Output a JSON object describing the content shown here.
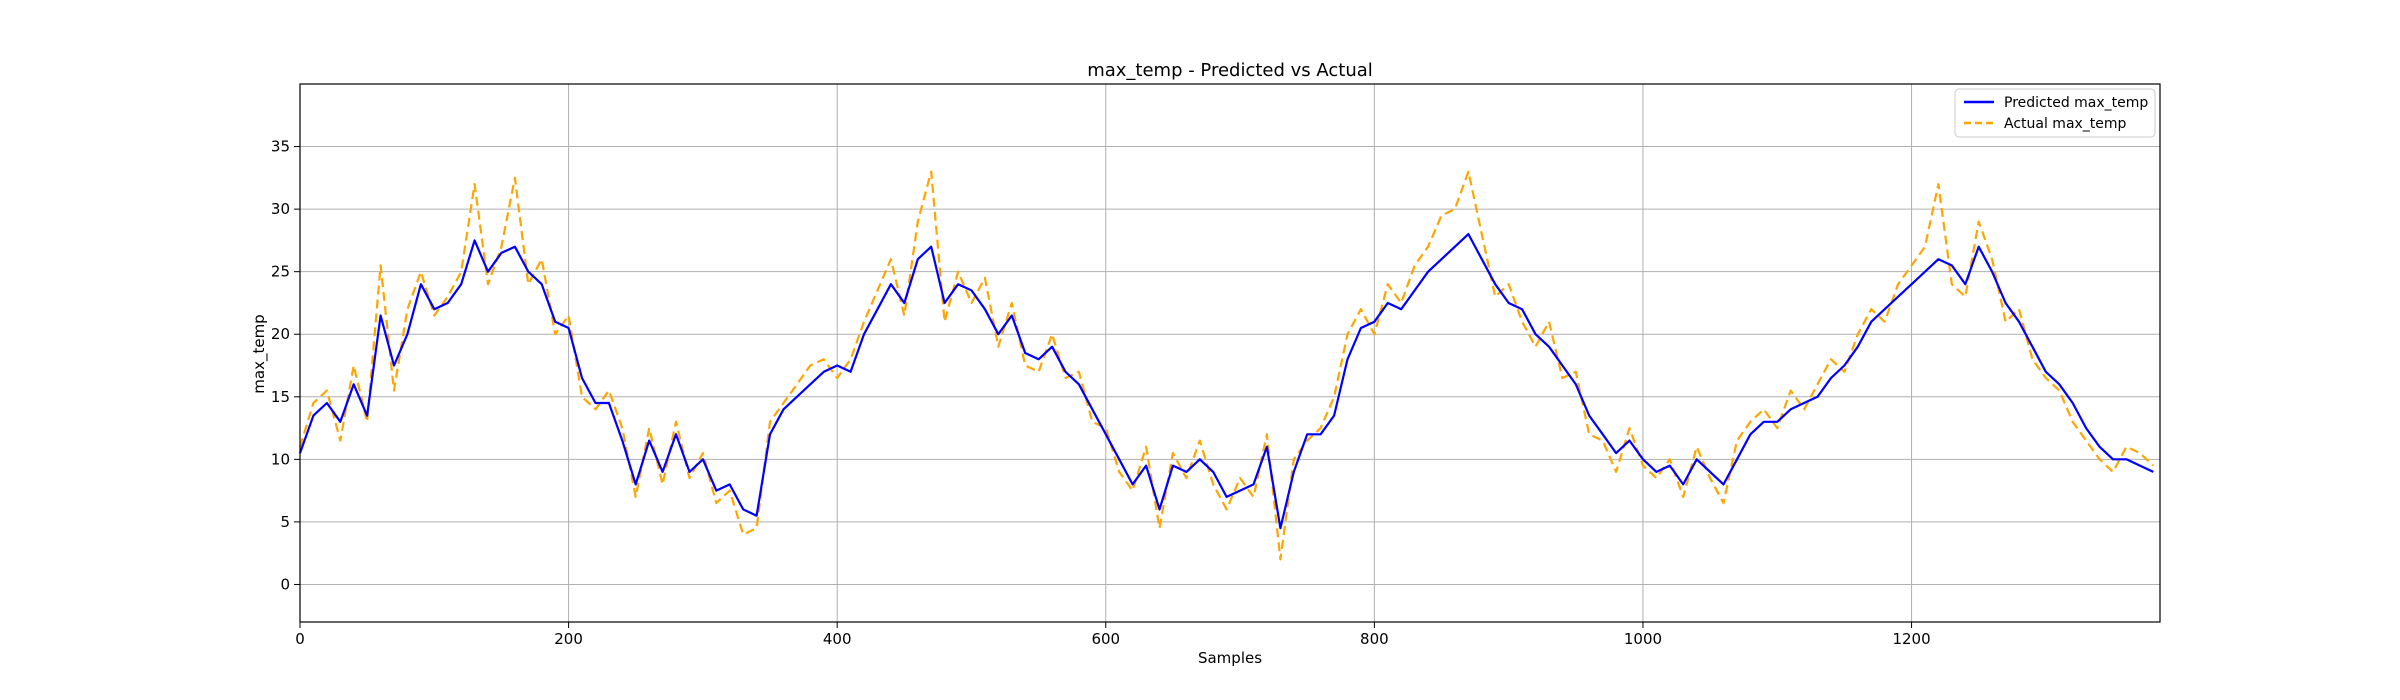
{
  "chart_data": {
    "type": "line",
    "title": "max_temp - Predicted vs Actual",
    "xlabel": "Samples",
    "ylabel": "max_temp",
    "xlim": [
      0,
      1385
    ],
    "ylim": [
      -3,
      40
    ],
    "xticks": [
      0,
      200,
      400,
      600,
      800,
      1000,
      1200
    ],
    "yticks": [
      0,
      5,
      10,
      15,
      20,
      25,
      30,
      35
    ],
    "grid": true,
    "legend_position": "top-right",
    "series": [
      {
        "name": "Predicted max_temp",
        "color": "#0000ff",
        "style": "solid",
        "x": [
          0,
          10,
          20,
          30,
          40,
          50,
          60,
          70,
          80,
          90,
          100,
          110,
          120,
          130,
          140,
          150,
          160,
          170,
          180,
          190,
          200,
          210,
          220,
          230,
          240,
          250,
          260,
          270,
          280,
          290,
          300,
          310,
          320,
          330,
          340,
          350,
          360,
          370,
          380,
          390,
          400,
          410,
          420,
          430,
          440,
          450,
          460,
          470,
          480,
          490,
          500,
          510,
          520,
          530,
          540,
          550,
          560,
          570,
          580,
          590,
          600,
          610,
          620,
          630,
          640,
          650,
          660,
          670,
          680,
          690,
          700,
          710,
          720,
          730,
          740,
          750,
          760,
          770,
          780,
          790,
          800,
          810,
          820,
          830,
          840,
          850,
          860,
          870,
          880,
          890,
          900,
          910,
          920,
          930,
          940,
          950,
          960,
          970,
          980,
          990,
          1000,
          1010,
          1020,
          1030,
          1040,
          1050,
          1060,
          1070,
          1080,
          1090,
          1100,
          1110,
          1120,
          1130,
          1140,
          1150,
          1160,
          1170,
          1180,
          1190,
          1200,
          1210,
          1220,
          1230,
          1240,
          1250,
          1260,
          1270,
          1280,
          1290,
          1300,
          1310,
          1320,
          1330,
          1340,
          1350,
          1360,
          1370,
          1380
        ],
        "values": [
          10.5,
          13.5,
          14.5,
          13.0,
          16.0,
          13.5,
          21.5,
          17.5,
          20.0,
          24.0,
          22.0,
          22.5,
          24.0,
          27.5,
          25.0,
          26.5,
          27.0,
          25.0,
          24.0,
          21.0,
          20.5,
          16.5,
          14.5,
          14.5,
          11.5,
          8.0,
          11.5,
          9.0,
          12.0,
          9.0,
          10.0,
          7.5,
          8.0,
          6.0,
          5.5,
          12.0,
          14.0,
          15.0,
          16.0,
          17.0,
          17.5,
          17.0,
          20.0,
          22.0,
          24.0,
          22.5,
          26.0,
          27.0,
          22.5,
          24.0,
          23.5,
          22.0,
          20.0,
          21.5,
          18.5,
          18.0,
          19.0,
          17.0,
          16.0,
          14.0,
          12.0,
          10.0,
          8.0,
          9.5,
          6.0,
          9.5,
          9.0,
          10.0,
          9.0,
          7.0,
          7.5,
          8.0,
          11.0,
          4.5,
          9.0,
          12.0,
          12.0,
          13.5,
          18.0,
          20.5,
          21.0,
          22.5,
          22.0,
          23.5,
          25.0,
          26.0,
          27.0,
          28.0,
          26.0,
          24.0,
          22.5,
          22.0,
          20.0,
          19.0,
          17.5,
          16.0,
          13.5,
          12.0,
          10.5,
          11.5,
          10.0,
          9.0,
          9.5,
          8.0,
          10.0,
          9.0,
          8.0,
          10.0,
          12.0,
          13.0,
          13.0,
          14.0,
          14.5,
          15.0,
          16.5,
          17.5,
          19.0,
          21.0,
          22.0,
          23.0,
          24.0,
          25.0,
          26.0,
          25.5,
          24.0,
          27.0,
          25.0,
          22.5,
          21.0,
          19.0,
          17.0,
          16.0,
          14.5,
          12.5,
          11.0,
          10.0,
          10.0,
          9.5,
          9.0
        ]
      },
      {
        "name": "Actual max_temp",
        "color": "#ffa500",
        "style": "dashed",
        "x": [
          0,
          10,
          20,
          30,
          40,
          50,
          60,
          70,
          80,
          90,
          100,
          110,
          120,
          130,
          140,
          150,
          160,
          170,
          180,
          190,
          200,
          210,
          220,
          230,
          240,
          250,
          260,
          270,
          280,
          290,
          300,
          310,
          320,
          330,
          340,
          350,
          360,
          370,
          380,
          390,
          400,
          410,
          420,
          430,
          440,
          450,
          460,
          470,
          480,
          490,
          500,
          510,
          520,
          530,
          540,
          550,
          560,
          570,
          580,
          590,
          600,
          610,
          620,
          630,
          640,
          650,
          660,
          670,
          680,
          690,
          700,
          710,
          720,
          730,
          740,
          750,
          760,
          770,
          780,
          790,
          800,
          810,
          820,
          830,
          840,
          850,
          860,
          870,
          880,
          890,
          900,
          910,
          920,
          930,
          940,
          950,
          960,
          970,
          980,
          990,
          1000,
          1010,
          1020,
          1030,
          1040,
          1050,
          1060,
          1070,
          1080,
          1090,
          1100,
          1110,
          1120,
          1130,
          1140,
          1150,
          1160,
          1170,
          1180,
          1190,
          1200,
          1210,
          1220,
          1230,
          1240,
          1250,
          1260,
          1270,
          1280,
          1290,
          1300,
          1310,
          1320,
          1330,
          1340,
          1350,
          1360,
          1370,
          1380
        ],
        "values": [
          11.0,
          14.5,
          15.5,
          11.5,
          17.5,
          13.0,
          25.5,
          15.5,
          22.0,
          25.0,
          21.5,
          23.0,
          25.0,
          32.0,
          24.0,
          27.0,
          32.5,
          24.0,
          26.0,
          20.0,
          21.5,
          15.0,
          14.0,
          15.5,
          12.5,
          7.0,
          12.5,
          8.0,
          13.0,
          8.5,
          10.5,
          6.5,
          7.5,
          4.0,
          4.5,
          13.0,
          14.5,
          16.0,
          17.5,
          18.0,
          16.5,
          18.0,
          21.0,
          23.5,
          26.0,
          21.5,
          29.0,
          33.0,
          21.0,
          25.0,
          22.5,
          24.5,
          19.0,
          22.5,
          17.5,
          17.0,
          20.0,
          16.5,
          17.0,
          13.0,
          12.5,
          9.0,
          7.5,
          11.0,
          4.5,
          10.5,
          8.5,
          11.5,
          8.0,
          6.0,
          8.5,
          7.0,
          12.0,
          2.0,
          10.0,
          11.5,
          12.5,
          15.0,
          20.0,
          22.0,
          20.0,
          24.0,
          22.5,
          25.5,
          27.0,
          29.5,
          30.0,
          33.0,
          28.0,
          23.0,
          24.0,
          21.0,
          19.0,
          21.0,
          16.5,
          17.0,
          12.0,
          11.5,
          9.0,
          12.5,
          9.5,
          8.5,
          10.0,
          7.0,
          11.0,
          8.5,
          6.5,
          11.5,
          13.0,
          14.0,
          12.5,
          15.5,
          14.0,
          16.0,
          18.0,
          17.0,
          20.0,
          22.0,
          21.0,
          24.0,
          25.5,
          27.0,
          32.0,
          24.0,
          23.0,
          29.0,
          26.0,
          21.0,
          22.0,
          18.0,
          16.5,
          15.5,
          13.0,
          11.5,
          10.0,
          9.0,
          11.0,
          10.5,
          9.5
        ]
      }
    ]
  }
}
